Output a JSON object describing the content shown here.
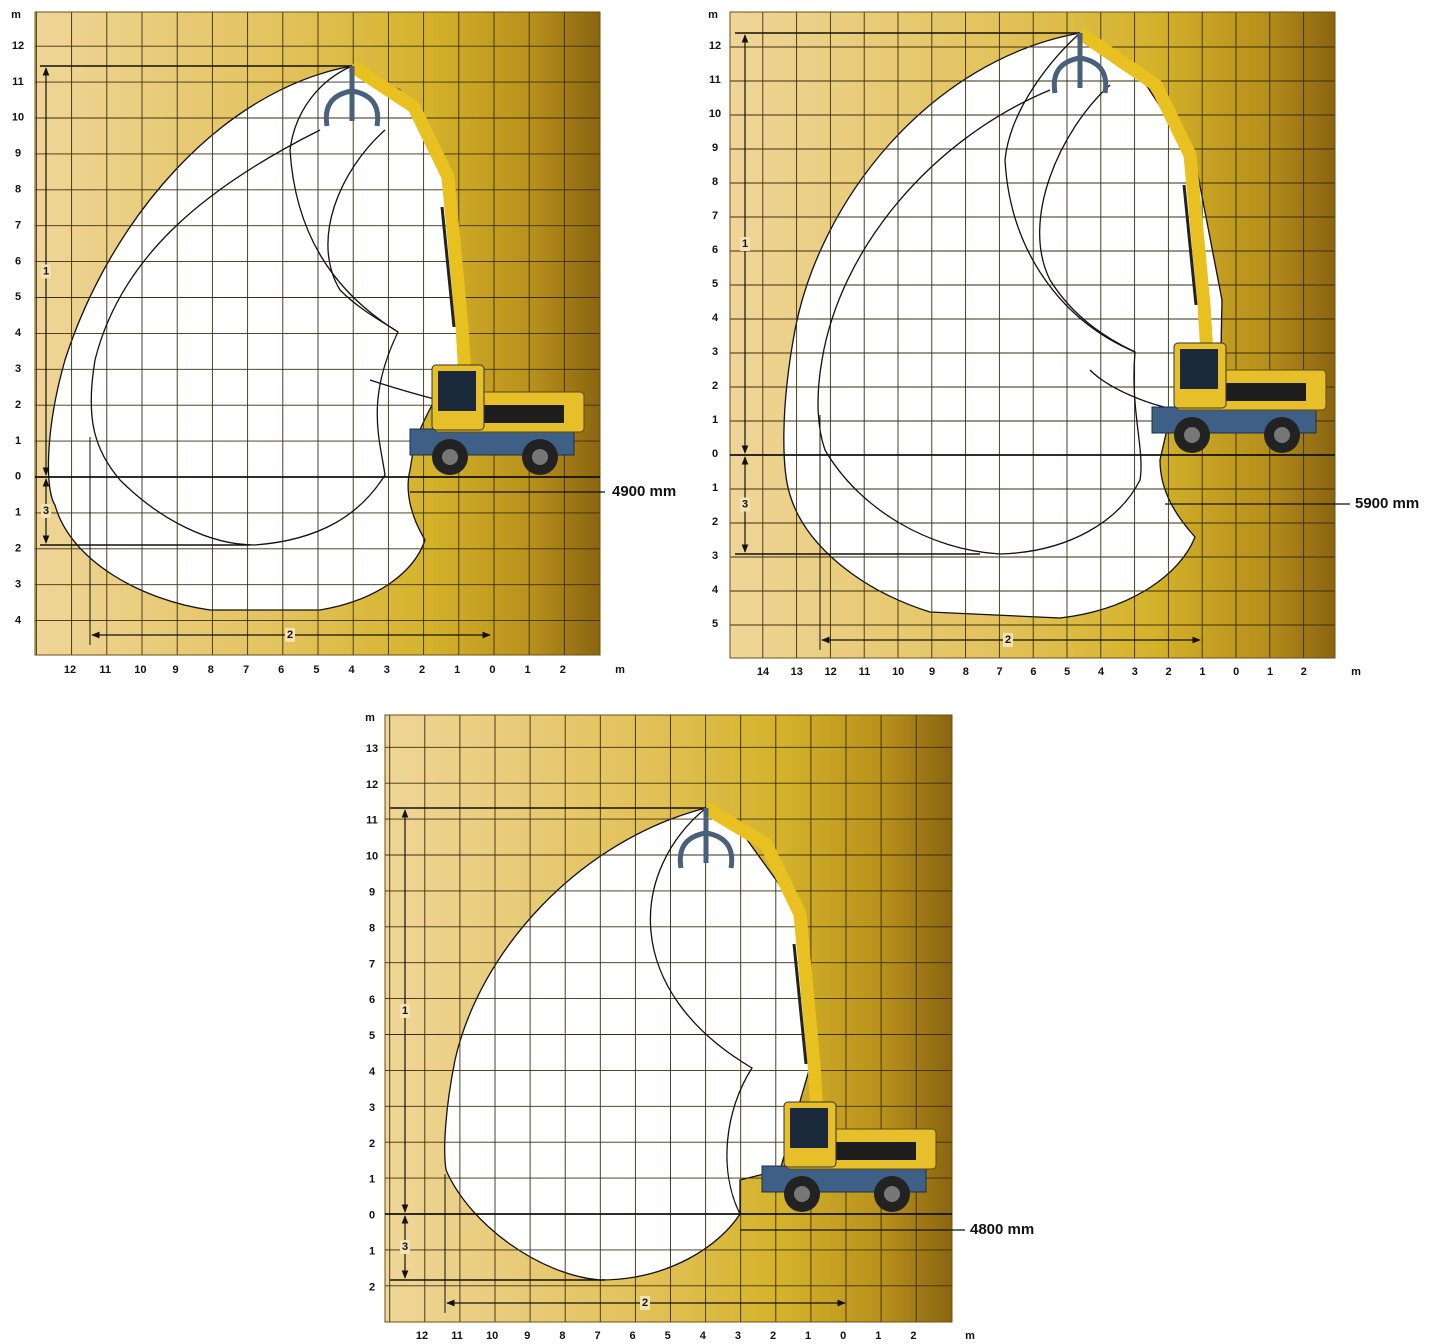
{
  "panels": [
    {
      "y_unit": "m",
      "x_unit": "m",
      "y_labels": [
        "12",
        "11",
        "10",
        "9",
        "8",
        "7",
        "6",
        "5",
        "4",
        "3",
        "2",
        "1",
        "0",
        "1",
        "2",
        "3",
        "4"
      ],
      "x_labels": [
        "12",
        "11",
        "10",
        "9",
        "8",
        "7",
        "6",
        "5",
        "4",
        "3",
        "2",
        "1",
        "0",
        "1",
        "2"
      ],
      "dim_1": "1",
      "dim_2": "2",
      "dim_3": "3",
      "depth_label": "4900 mm"
    },
    {
      "y_unit": "m",
      "x_unit": "m",
      "y_labels": [
        "12",
        "11",
        "10",
        "9",
        "8",
        "7",
        "6",
        "5",
        "4",
        "3",
        "2",
        "1",
        "0",
        "1",
        "2",
        "3",
        "4",
        "5"
      ],
      "x_labels": [
        "14",
        "13",
        "12",
        "11",
        "10",
        "9",
        "8",
        "7",
        "6",
        "5",
        "4",
        "3",
        "2",
        "1",
        "0",
        "1",
        "2"
      ],
      "dim_1": "1",
      "dim_2": "2",
      "dim_3": "3",
      "depth_label": "5900 mm"
    },
    {
      "y_unit": "m",
      "x_unit": "m",
      "y_labels": [
        "13",
        "12",
        "11",
        "10",
        "9",
        "8",
        "7",
        "6",
        "5",
        "4",
        "3",
        "2",
        "1",
        "0",
        "1",
        "2"
      ],
      "x_labels": [
        "12",
        "11",
        "10",
        "9",
        "8",
        "7",
        "6",
        "5",
        "4",
        "3",
        "2",
        "1",
        "0",
        "1",
        "2"
      ],
      "dim_1": "1",
      "dim_2": "2",
      "dim_3": "3",
      "depth_label": "4800 mm"
    }
  ]
}
